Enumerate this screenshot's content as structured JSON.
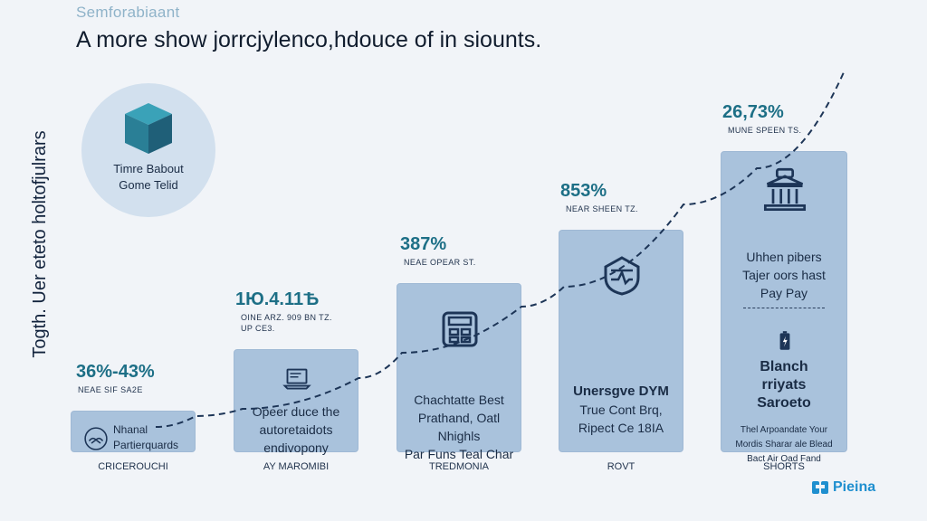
{
  "header": {
    "supertitle": "Semforabiaant",
    "title": "A more show jorrcjylenco,hdouce of in siounts."
  },
  "y_axis_label": "Togth. Uer eteto holtofjulrars",
  "badge": {
    "line1": "Timre Babout",
    "line2": "Gome Telid",
    "icon": "cube-icon"
  },
  "chart_data": {
    "type": "bar",
    "categories": [
      "CRICEROUCHI",
      "AY MAROMIBI",
      "TREDMONIA",
      "ROVT",
      "SHORTS"
    ],
    "values": [
      50,
      125,
      205,
      270,
      365
    ],
    "value_labels": [
      "36%-43%",
      "1Ю.4.11Ѣ",
      "387%",
      "853%",
      "26,73%"
    ],
    "sub_labels": [
      "NEAE SIF SA2E",
      "OINE ARZ. 909 BN TZ.",
      "NEAE OPEAR ST.",
      "NEAR SHEEN TZ.",
      "MUNE SPEEN TS."
    ],
    "sub_labels_2": [
      "",
      "UP CE3.",
      "",
      "",
      ""
    ],
    "bar_text": [
      [
        "Nhanal",
        "Partierquards"
      ],
      [
        "Opeer duce the",
        "autoretaidots",
        "endivopony"
      ],
      [
        "Chachtatte Best",
        "Prathand, Oatl Nhighls",
        "Par Funs Teal Char"
      ],
      [
        "Unersgve DYM",
        "True Cont Brq,",
        "Ripect Ce 18IA"
      ],
      [
        "Uhhen pibers",
        "Tajer oors hast",
        "Pay Pay",
        "Blanch",
        "rriyats",
        "Saroeto",
        "Thel Arpoandate Your",
        "Mordis Sharar ale Blead",
        "Bact Air Oad Fand"
      ]
    ],
    "bar_icons": [
      "handshake-icon",
      "laptop-icon",
      "calculator-icon",
      "shield-icon",
      "bank-icon"
    ],
    "bar_icons_2": [
      "",
      "",
      "",
      "",
      "battery-icon"
    ],
    "trend_line": "dashed-upward",
    "ylim": [
      0,
      400
    ],
    "grid": false,
    "colors": {
      "bar": "#a9c2dc",
      "value": "#1d6f86",
      "line": "#1d3557",
      "icon": "#1d3557"
    }
  },
  "footer": {
    "logo_text": "Pieina",
    "logo_icon": "logo-icon"
  }
}
